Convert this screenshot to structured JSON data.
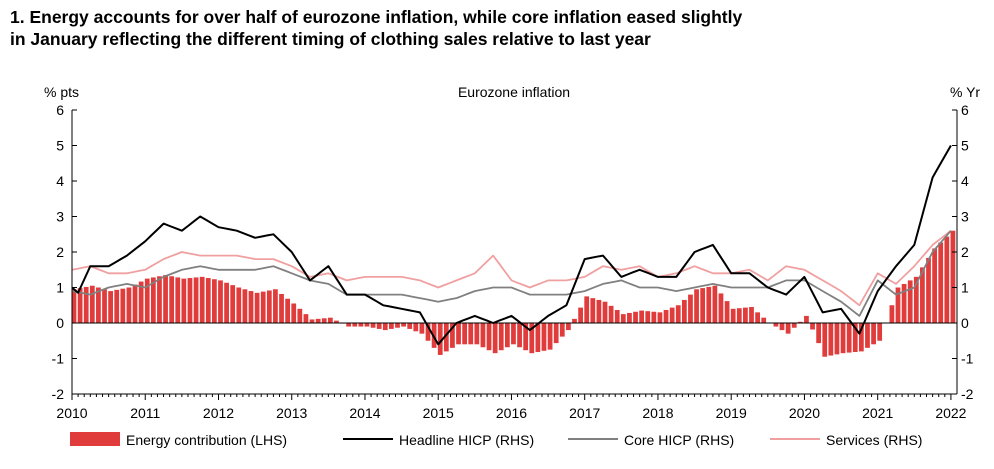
{
  "title_lines": [
    "1. Energy accounts for over half of eurozone inflation, while core inflation eased slightly",
    "in January reflecting the different timing of clothing sales relative to last year"
  ],
  "colors": {
    "energy": "#e03c3c",
    "headline": "#000000",
    "core": "#808080",
    "services": "#f0a0a0"
  },
  "chart_data": {
    "type": "bar+line",
    "title": "Eurozone inflation",
    "left_axis_label": "% pts",
    "right_axis_label": "% Yr",
    "ylim": [
      -2,
      6
    ],
    "yticks": [
      "-2",
      "-1",
      "0",
      "1",
      "2",
      "3",
      "4",
      "5",
      "6"
    ],
    "xticks": [
      "2010",
      "2011",
      "2012",
      "2013",
      "2014",
      "2015",
      "2016",
      "2017",
      "2018",
      "2019",
      "2020",
      "2021",
      "2022"
    ],
    "x_range": [
      2010.0,
      2022.083
    ],
    "grid": false,
    "legend_position": "bottom",
    "series": [
      {
        "name": "Energy contribution (LHS)",
        "type": "bar",
        "points": [
          [
            2010.0,
            0.95
          ],
          [
            2010.25,
            1.05
          ],
          [
            2010.5,
            0.9
          ],
          [
            2010.75,
            1.0
          ],
          [
            2011.0,
            1.25
          ],
          [
            2011.25,
            1.35
          ],
          [
            2011.5,
            1.25
          ],
          [
            2011.75,
            1.3
          ],
          [
            2012.0,
            1.2
          ],
          [
            2012.25,
            1.0
          ],
          [
            2012.5,
            0.85
          ],
          [
            2012.75,
            0.95
          ],
          [
            2013.0,
            0.55
          ],
          [
            2013.25,
            0.1
          ],
          [
            2013.5,
            0.15
          ],
          [
            2013.75,
            -0.1
          ],
          [
            2014.0,
            -0.1
          ],
          [
            2014.25,
            -0.2
          ],
          [
            2014.5,
            -0.1
          ],
          [
            2014.75,
            -0.3
          ],
          [
            2015.0,
            -0.9
          ],
          [
            2015.25,
            -0.6
          ],
          [
            2015.5,
            -0.6
          ],
          [
            2015.75,
            -0.85
          ],
          [
            2016.0,
            -0.6
          ],
          [
            2016.25,
            -0.85
          ],
          [
            2016.5,
            -0.75
          ],
          [
            2016.75,
            -0.2
          ],
          [
            2017.0,
            0.75
          ],
          [
            2017.25,
            0.6
          ],
          [
            2017.5,
            0.25
          ],
          [
            2017.75,
            0.35
          ],
          [
            2018.0,
            0.3
          ],
          [
            2018.25,
            0.5
          ],
          [
            2018.5,
            0.95
          ],
          [
            2018.75,
            1.05
          ],
          [
            2019.0,
            0.4
          ],
          [
            2019.25,
            0.45
          ],
          [
            2019.5,
            0.0
          ],
          [
            2019.75,
            -0.3
          ],
          [
            2020.0,
            0.2
          ],
          [
            2020.25,
            -0.95
          ],
          [
            2020.5,
            -0.85
          ],
          [
            2020.75,
            -0.8
          ],
          [
            2021.0,
            -0.5
          ],
          [
            2021.25,
            1.0
          ],
          [
            2021.5,
            1.3
          ],
          [
            2021.75,
            2.1
          ],
          [
            2022.0,
            2.6
          ],
          [
            2022.083,
            2.8
          ]
        ]
      },
      {
        "name": "Headline HICP (RHS)",
        "type": "line",
        "points": [
          [
            2010.0,
            1.0
          ],
          [
            2010.083,
            0.85
          ],
          [
            2010.25,
            1.6
          ],
          [
            2010.5,
            1.6
          ],
          [
            2010.75,
            1.9
          ],
          [
            2011.0,
            2.3
          ],
          [
            2011.25,
            2.8
          ],
          [
            2011.5,
            2.6
          ],
          [
            2011.75,
            3.0
          ],
          [
            2012.0,
            2.7
          ],
          [
            2012.25,
            2.6
          ],
          [
            2012.5,
            2.4
          ],
          [
            2012.75,
            2.5
          ],
          [
            2013.0,
            2.0
          ],
          [
            2013.25,
            1.2
          ],
          [
            2013.5,
            1.6
          ],
          [
            2013.75,
            0.8
          ],
          [
            2014.0,
            0.8
          ],
          [
            2014.25,
            0.5
          ],
          [
            2014.5,
            0.4
          ],
          [
            2014.75,
            0.3
          ],
          [
            2015.0,
            -0.6
          ],
          [
            2015.25,
            0.0
          ],
          [
            2015.5,
            0.2
          ],
          [
            2015.75,
            0.0
          ],
          [
            2016.0,
            0.2
          ],
          [
            2016.25,
            -0.2
          ],
          [
            2016.5,
            0.2
          ],
          [
            2016.75,
            0.5
          ],
          [
            2017.0,
            1.8
          ],
          [
            2017.25,
            1.9
          ],
          [
            2017.5,
            1.3
          ],
          [
            2017.75,
            1.5
          ],
          [
            2018.0,
            1.3
          ],
          [
            2018.25,
            1.3
          ],
          [
            2018.5,
            2.0
          ],
          [
            2018.75,
            2.2
          ],
          [
            2019.0,
            1.4
          ],
          [
            2019.25,
            1.4
          ],
          [
            2019.5,
            1.0
          ],
          [
            2019.75,
            0.8
          ],
          [
            2020.0,
            1.3
          ],
          [
            2020.25,
            0.3
          ],
          [
            2020.5,
            0.4
          ],
          [
            2020.75,
            -0.3
          ],
          [
            2021.0,
            0.9
          ],
          [
            2021.25,
            1.6
          ],
          [
            2021.5,
            2.2
          ],
          [
            2021.75,
            4.1
          ],
          [
            2022.0,
            5.0
          ],
          [
            2022.083,
            5.1
          ]
        ]
      },
      {
        "name": "Core HICP (RHS)",
        "type": "line",
        "points": [
          [
            2010.0,
            0.9
          ],
          [
            2010.25,
            0.8
          ],
          [
            2010.5,
            1.0
          ],
          [
            2010.75,
            1.1
          ],
          [
            2011.0,
            1.0
          ],
          [
            2011.25,
            1.3
          ],
          [
            2011.5,
            1.5
          ],
          [
            2011.75,
            1.6
          ],
          [
            2012.0,
            1.5
          ],
          [
            2012.25,
            1.5
          ],
          [
            2012.5,
            1.5
          ],
          [
            2012.75,
            1.6
          ],
          [
            2013.0,
            1.4
          ],
          [
            2013.25,
            1.2
          ],
          [
            2013.5,
            1.1
          ],
          [
            2013.75,
            0.8
          ],
          [
            2014.0,
            0.8
          ],
          [
            2014.25,
            0.8
          ],
          [
            2014.5,
            0.8
          ],
          [
            2014.75,
            0.7
          ],
          [
            2015.0,
            0.6
          ],
          [
            2015.25,
            0.7
          ],
          [
            2015.5,
            0.9
          ],
          [
            2015.75,
            1.0
          ],
          [
            2016.0,
            1.0
          ],
          [
            2016.25,
            0.8
          ],
          [
            2016.5,
            0.8
          ],
          [
            2016.75,
            0.8
          ],
          [
            2017.0,
            0.9
          ],
          [
            2017.25,
            1.1
          ],
          [
            2017.5,
            1.2
          ],
          [
            2017.75,
            1.0
          ],
          [
            2018.0,
            1.0
          ],
          [
            2018.25,
            0.9
          ],
          [
            2018.5,
            1.0
          ],
          [
            2018.75,
            1.1
          ],
          [
            2019.0,
            1.0
          ],
          [
            2019.25,
            1.0
          ],
          [
            2019.5,
            1.0
          ],
          [
            2019.75,
            1.2
          ],
          [
            2020.0,
            1.2
          ],
          [
            2020.25,
            0.9
          ],
          [
            2020.5,
            0.6
          ],
          [
            2020.75,
            0.2
          ],
          [
            2021.0,
            1.2
          ],
          [
            2021.25,
            0.8
          ],
          [
            2021.5,
            1.0
          ],
          [
            2021.75,
            2.0
          ],
          [
            2022.0,
            2.6
          ],
          [
            2022.083,
            2.3
          ]
        ]
      },
      {
        "name": "Services (RHS)",
        "type": "line",
        "points": [
          [
            2010.0,
            1.5
          ],
          [
            2010.25,
            1.6
          ],
          [
            2010.5,
            1.4
          ],
          [
            2010.75,
            1.4
          ],
          [
            2011.0,
            1.5
          ],
          [
            2011.25,
            1.8
          ],
          [
            2011.5,
            2.0
          ],
          [
            2011.75,
            1.9
          ],
          [
            2012.0,
            1.9
          ],
          [
            2012.25,
            1.9
          ],
          [
            2012.5,
            1.8
          ],
          [
            2012.75,
            1.8
          ],
          [
            2013.0,
            1.6
          ],
          [
            2013.25,
            1.3
          ],
          [
            2013.5,
            1.4
          ],
          [
            2013.75,
            1.2
          ],
          [
            2014.0,
            1.3
          ],
          [
            2014.25,
            1.3
          ],
          [
            2014.5,
            1.3
          ],
          [
            2014.75,
            1.2
          ],
          [
            2015.0,
            1.0
          ],
          [
            2015.25,
            1.2
          ],
          [
            2015.5,
            1.4
          ],
          [
            2015.75,
            1.9
          ],
          [
            2016.0,
            1.2
          ],
          [
            2016.25,
            1.0
          ],
          [
            2016.5,
            1.2
          ],
          [
            2016.75,
            1.2
          ],
          [
            2017.0,
            1.3
          ],
          [
            2017.25,
            1.6
          ],
          [
            2017.5,
            1.5
          ],
          [
            2017.75,
            1.6
          ],
          [
            2018.0,
            1.3
          ],
          [
            2018.25,
            1.4
          ],
          [
            2018.5,
            1.6
          ],
          [
            2018.75,
            1.4
          ],
          [
            2019.0,
            1.4
          ],
          [
            2019.25,
            1.5
          ],
          [
            2019.5,
            1.2
          ],
          [
            2019.75,
            1.6
          ],
          [
            2020.0,
            1.5
          ],
          [
            2020.25,
            1.2
          ],
          [
            2020.5,
            0.9
          ],
          [
            2020.75,
            0.5
          ],
          [
            2021.0,
            1.4
          ],
          [
            2021.25,
            1.1
          ],
          [
            2021.5,
            1.6
          ],
          [
            2021.75,
            2.2
          ],
          [
            2022.0,
            2.6
          ],
          [
            2022.083,
            2.4
          ]
        ]
      }
    ]
  }
}
